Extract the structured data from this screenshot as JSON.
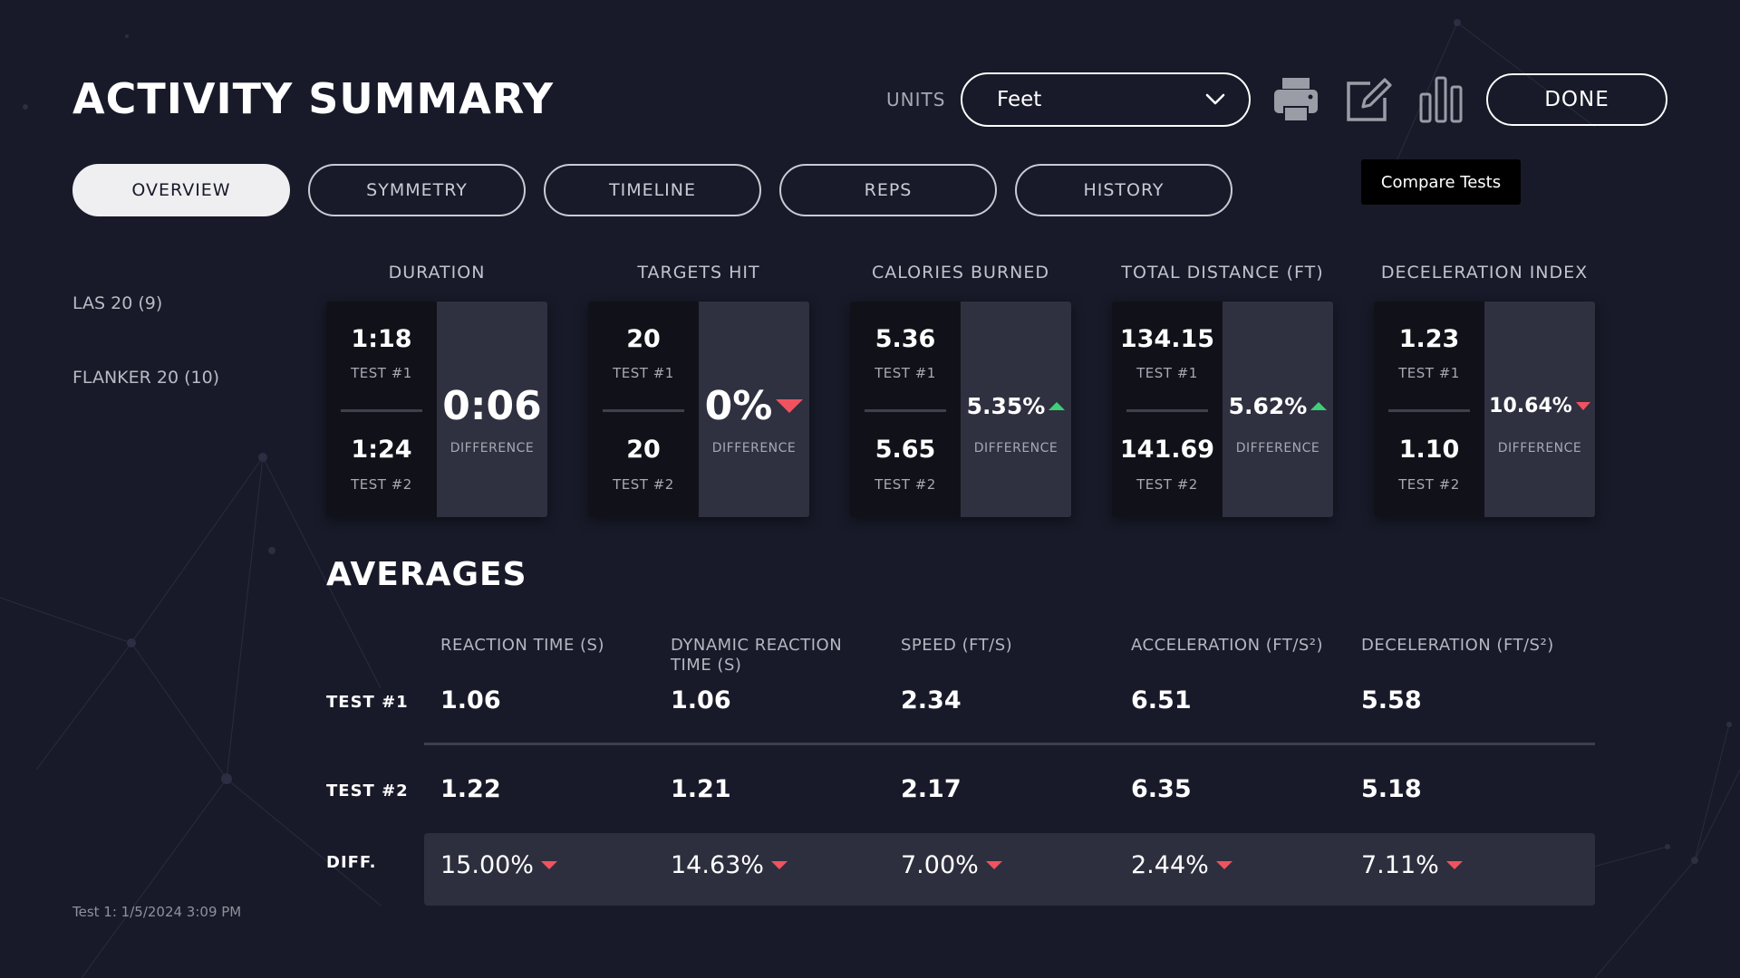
{
  "header": {
    "title": "ACTIVITY SUMMARY",
    "units_label": "UNITS",
    "units_value": "Feet",
    "done_label": "DONE",
    "tooltip": "Compare Tests",
    "icons": [
      "print-icon",
      "edit-icon",
      "bar-chart-icon",
      "chevron-down-icon"
    ]
  },
  "tabs": [
    {
      "label": "OVERVIEW",
      "active": true
    },
    {
      "label": "SYMMETRY",
      "active": false
    },
    {
      "label": "TIMELINE",
      "active": false
    },
    {
      "label": "REPS",
      "active": false
    },
    {
      "label": "HISTORY",
      "active": false
    }
  ],
  "sidebar": {
    "items": [
      "LAS 20 (9)",
      "FLANKER 20 (10)"
    ],
    "footer": "Test 1: 1/5/2024 3:09 PM"
  },
  "metrics": [
    {
      "title": "DURATION",
      "test1_value": "1:18",
      "test1_label": "TEST #1",
      "test2_value": "1:24",
      "test2_label": "TEST #2",
      "diff_value": "0:06",
      "diff_label": "DIFFERENCE",
      "trend": "none"
    },
    {
      "title": "TARGETS HIT",
      "test1_value": "20",
      "test1_label": "TEST #1",
      "test2_value": "20",
      "test2_label": "TEST #2",
      "diff_value": "0%",
      "diff_label": "DIFFERENCE",
      "trend": "down"
    },
    {
      "title": "CALORIES BURNED",
      "test1_value": "5.36",
      "test1_label": "TEST #1",
      "test2_value": "5.65",
      "test2_label": "TEST #2",
      "diff_value": "5.35%",
      "diff_label": "DIFFERENCE",
      "trend": "up"
    },
    {
      "title": "TOTAL DISTANCE (FT)",
      "test1_value": "134.15",
      "test1_label": "TEST #1",
      "test2_value": "141.69",
      "test2_label": "TEST #2",
      "diff_value": "5.62%",
      "diff_label": "DIFFERENCE",
      "trend": "up"
    },
    {
      "title": "DECELERATION INDEX",
      "test1_value": "1.23",
      "test1_label": "TEST #1",
      "test2_value": "1.10",
      "test2_label": "TEST #2",
      "diff_value": "10.64%",
      "diff_label": "DIFFERENCE",
      "trend": "down"
    }
  ],
  "averages": {
    "title": "AVERAGES",
    "columns": [
      "REACTION TIME (S)",
      "DYNAMIC REACTION TIME (S)",
      "SPEED (FT/S)",
      "ACCELERATION (FT/S²)",
      "DECELERATION (FT/S²)"
    ],
    "row_labels": {
      "test1": "TEST #1",
      "test2": "TEST #2",
      "diff": "DIFF."
    },
    "test1": [
      "1.06",
      "1.06",
      "2.34",
      "6.51",
      "5.58"
    ],
    "test2": [
      "1.22",
      "1.21",
      "2.17",
      "6.35",
      "5.18"
    ],
    "diff": [
      "15.00%",
      "14.63%",
      "7.00%",
      "2.44%",
      "7.11%"
    ],
    "diff_trend": [
      "down",
      "down",
      "down",
      "down",
      "down"
    ]
  },
  "colors": {
    "background": "#181a29",
    "card_dark": "#111219",
    "card_light": "#2f3040",
    "up": "#3ecf78",
    "down": "#f0535f"
  }
}
